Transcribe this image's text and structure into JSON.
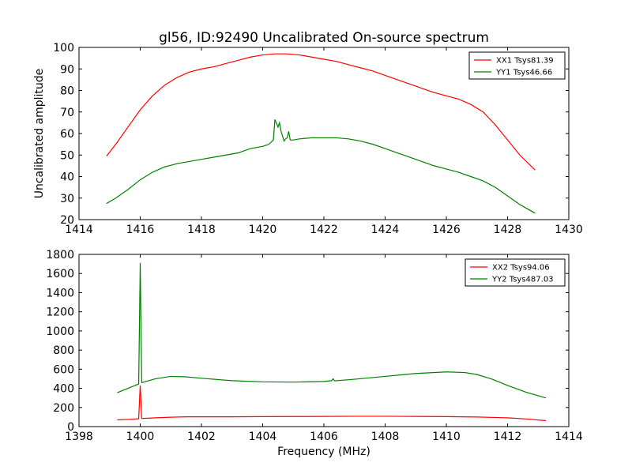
{
  "figure": {
    "title": "gl56, ID:92490 Uncalibrated On-source spectrum"
  },
  "chart_data": [
    {
      "type": "line",
      "title": "gl56, ID:92490 Uncalibrated On-source spectrum",
      "xlabel": "",
      "ylabel": "Uncalibrated amplitude",
      "xlim": [
        1414,
        1430
      ],
      "ylim": [
        20,
        100
      ],
      "xticks": [
        "1414",
        "1416",
        "1418",
        "1420",
        "1422",
        "1424",
        "1426",
        "1428",
        "1430"
      ],
      "yticks": [
        "20",
        "30",
        "40",
        "50",
        "60",
        "70",
        "80",
        "90",
        "100"
      ],
      "legend_position": "top-right",
      "grid": false,
      "series": [
        {
          "name": "XX1 Tsys81.39",
          "color": "#ff0000",
          "x": [
            1414.9,
            1415.2,
            1415.6,
            1416.0,
            1416.4,
            1416.8,
            1417.2,
            1417.6,
            1418.0,
            1418.4,
            1418.8,
            1419.2,
            1419.6,
            1420.0,
            1420.4,
            1420.8,
            1421.2,
            1421.6,
            1422.0,
            1422.4,
            1422.8,
            1423.2,
            1423.6,
            1424.0,
            1424.4,
            1424.8,
            1425.2,
            1425.6,
            1426.0,
            1426.4,
            1426.8,
            1427.2,
            1427.6,
            1428.0,
            1428.4,
            1428.9
          ],
          "y": [
            49.5,
            55,
            63,
            71,
            77.5,
            82.5,
            86,
            88.5,
            90,
            91,
            92.5,
            94,
            95.5,
            96.5,
            97,
            97,
            96.5,
            95.5,
            94.5,
            93.5,
            92,
            90.5,
            89,
            87,
            85,
            83,
            81,
            79,
            77.5,
            76,
            73.5,
            70,
            64,
            57,
            50,
            43
          ]
        },
        {
          "name": "YY1 Tsys46.66",
          "color": "#008000",
          "x": [
            1414.9,
            1415.2,
            1415.6,
            1416.0,
            1416.4,
            1416.8,
            1417.2,
            1417.6,
            1418.0,
            1418.4,
            1418.8,
            1419.2,
            1419.6,
            1420.0,
            1420.2,
            1420.35,
            1420.4,
            1420.5,
            1420.55,
            1420.6,
            1420.7,
            1420.75,
            1420.8,
            1420.85,
            1420.9,
            1421.0,
            1421.2,
            1421.6,
            1422.0,
            1422.4,
            1422.8,
            1423.2,
            1423.6,
            1424.0,
            1424.4,
            1424.8,
            1425.2,
            1425.6,
            1426.0,
            1426.4,
            1426.8,
            1427.2,
            1427.6,
            1428.0,
            1428.4,
            1428.9
          ],
          "y": [
            27.5,
            30,
            34,
            38.5,
            42,
            44.5,
            46,
            47,
            48,
            49,
            50,
            51,
            53,
            54,
            55,
            57,
            66.5,
            63,
            65,
            61,
            56.5,
            57.5,
            58,
            61,
            57,
            57,
            57.5,
            58,
            58,
            58,
            57.5,
            56.5,
            55,
            53,
            51,
            49,
            47,
            45,
            43.5,
            42,
            40,
            38,
            35,
            31,
            27,
            23
          ]
        }
      ]
    },
    {
      "type": "line",
      "title": "",
      "xlabel": "Frequency (MHz)",
      "ylabel": "",
      "xlim": [
        1398,
        1414
      ],
      "ylim": [
        0,
        1800
      ],
      "xticks": [
        "1398",
        "1400",
        "1402",
        "1404",
        "1406",
        "1408",
        "1410",
        "1412",
        "1414"
      ],
      "yticks": [
        "0",
        "200",
        "400",
        "600",
        "800",
        "1000",
        "1200",
        "1400",
        "1600",
        "1800"
      ],
      "legend_position": "top-right",
      "grid": false,
      "series": [
        {
          "name": "XX2 Tsys94.06",
          "color": "#ff0000",
          "x": [
            1399.25,
            1399.6,
            1399.95,
            1400.0,
            1400.05,
            1400.5,
            1401.0,
            1401.5,
            1402.0,
            1403.0,
            1404.0,
            1405.0,
            1406.0,
            1407.0,
            1408.0,
            1409.0,
            1410.0,
            1411.0,
            1412.0,
            1412.6,
            1413.25
          ],
          "y": [
            70,
            75,
            82,
            430,
            85,
            92,
            98,
            102,
            102,
            102,
            104,
            105,
            106,
            108,
            108,
            106,
            104,
            100,
            92,
            80,
            62
          ]
        },
        {
          "name": "YY2 Tsys487.03",
          "color": "#008000",
          "x": [
            1399.25,
            1399.6,
            1399.95,
            1400.0,
            1400.05,
            1400.5,
            1401.0,
            1401.5,
            1402.0,
            1403.0,
            1404.0,
            1405.0,
            1406.0,
            1406.25,
            1406.3,
            1406.35,
            1407.0,
            1408.0,
            1409.0,
            1410.0,
            1410.6,
            1411.0,
            1411.5,
            1412.0,
            1412.6,
            1413.25
          ],
          "y": [
            355,
            400,
            445,
            1710,
            460,
            500,
            525,
            520,
            505,
            480,
            468,
            465,
            472,
            480,
            500,
            478,
            495,
            525,
            555,
            572,
            565,
            545,
            495,
            430,
            360,
            300
          ]
        }
      ]
    }
  ]
}
